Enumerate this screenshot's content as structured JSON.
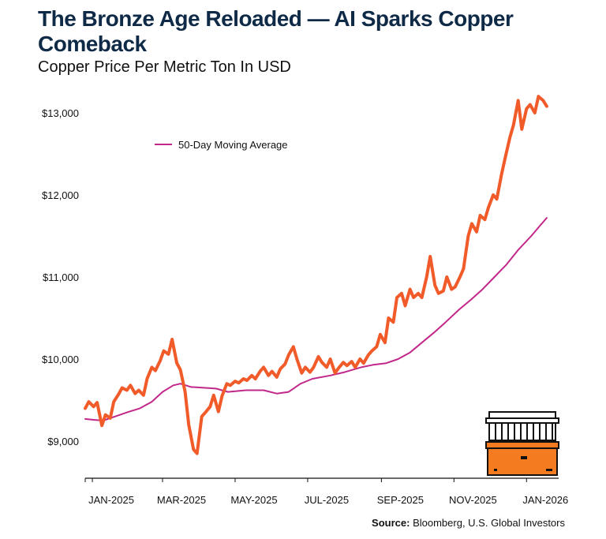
{
  "header": {
    "title": "The Bronze Age Reloaded — AI Sparks Copper Comeback",
    "subtitle": "Copper Price Per Metric Ton In USD"
  },
  "source": {
    "label": "Source:",
    "text": "Bloomberg, U.S. Global Investors"
  },
  "colors": {
    "price": "#f15a29",
    "moving_average": "#c2288a",
    "icon_fill": "#f47b20"
  },
  "icon": "bank-gold-bar-icon",
  "chart_data": {
    "type": "line",
    "title": "Copper Price Per Metric Ton In USD",
    "xlabel": "",
    "ylabel": "",
    "x_ticks": [
      "JAN-2025",
      "MAR-2025",
      "MAY-2025",
      "JUL-2025",
      "SEP-2025",
      "NOV-2025",
      "JAN-2026"
    ],
    "y_ticks": [
      {
        "value": 9000,
        "label": "$9,000"
      },
      {
        "value": 10000,
        "label": "$10,000"
      },
      {
        "value": 11000,
        "label": "$11,000"
      },
      {
        "value": 12000,
        "label": "$12,000"
      },
      {
        "value": 13000,
        "label": "$13,000"
      }
    ],
    "x_range": [
      "2024-12-26",
      "2026-01-28"
    ],
    "ylim": [
      8500,
      13500
    ],
    "legend": {
      "placement": "top-left",
      "entries": [
        "50-Day Moving Average"
      ]
    },
    "grid": false,
    "series": [
      {
        "name": "",
        "points": [
          [
            "2024-12-26",
            9400
          ],
          [
            "2024-12-29",
            9480
          ],
          [
            "2025-01-02",
            9420
          ],
          [
            "2025-01-05",
            9470
          ],
          [
            "2025-01-09",
            9190
          ],
          [
            "2025-01-12",
            9320
          ],
          [
            "2025-01-16",
            9280
          ],
          [
            "2025-01-19",
            9480
          ],
          [
            "2025-01-23",
            9570
          ],
          [
            "2025-01-26",
            9650
          ],
          [
            "2025-01-30",
            9620
          ],
          [
            "2025-02-02",
            9680
          ],
          [
            "2025-02-06",
            9580
          ],
          [
            "2025-02-09",
            9620
          ],
          [
            "2025-02-13",
            9560
          ],
          [
            "2025-02-16",
            9760
          ],
          [
            "2025-02-20",
            9900
          ],
          [
            "2025-02-23",
            9860
          ],
          [
            "2025-02-27",
            9980
          ],
          [
            "2025-03-02",
            10100
          ],
          [
            "2025-03-06",
            10060
          ],
          [
            "2025-03-09",
            10240
          ],
          [
            "2025-03-13",
            9950
          ],
          [
            "2025-03-16",
            9870
          ],
          [
            "2025-03-20",
            9600
          ],
          [
            "2025-03-23",
            9200
          ],
          [
            "2025-03-27",
            8900
          ],
          [
            "2025-03-30",
            8850
          ],
          [
            "2025-04-03",
            9300
          ],
          [
            "2025-04-06",
            9350
          ],
          [
            "2025-04-10",
            9420
          ],
          [
            "2025-04-13",
            9560
          ],
          [
            "2025-04-17",
            9360
          ],
          [
            "2025-04-20",
            9550
          ],
          [
            "2025-04-24",
            9700
          ],
          [
            "2025-04-27",
            9680
          ],
          [
            "2025-05-01",
            9730
          ],
          [
            "2025-05-04",
            9710
          ],
          [
            "2025-05-08",
            9760
          ],
          [
            "2025-05-11",
            9740
          ],
          [
            "2025-05-15",
            9800
          ],
          [
            "2025-05-18",
            9760
          ],
          [
            "2025-05-22",
            9850
          ],
          [
            "2025-05-25",
            9900
          ],
          [
            "2025-05-29",
            9800
          ],
          [
            "2025-06-01",
            9850
          ],
          [
            "2025-06-05",
            9780
          ],
          [
            "2025-06-08",
            9880
          ],
          [
            "2025-06-12",
            9940
          ],
          [
            "2025-06-15",
            10050
          ],
          [
            "2025-06-19",
            10150
          ],
          [
            "2025-06-22",
            10000
          ],
          [
            "2025-06-26",
            9830
          ],
          [
            "2025-06-29",
            9900
          ],
          [
            "2025-07-03",
            9840
          ],
          [
            "2025-07-06",
            9900
          ],
          [
            "2025-07-10",
            10030
          ],
          [
            "2025-07-13",
            9960
          ],
          [
            "2025-07-17",
            9900
          ],
          [
            "2025-07-20",
            10000
          ],
          [
            "2025-07-24",
            9830
          ],
          [
            "2025-07-27",
            9890
          ],
          [
            "2025-07-31",
            9960
          ],
          [
            "2025-08-03",
            9920
          ],
          [
            "2025-08-07",
            9970
          ],
          [
            "2025-08-10",
            9900
          ],
          [
            "2025-08-14",
            10000
          ],
          [
            "2025-08-17",
            9950
          ],
          [
            "2025-08-21",
            10050
          ],
          [
            "2025-08-24",
            10100
          ],
          [
            "2025-08-28",
            10150
          ],
          [
            "2025-08-31",
            10300
          ],
          [
            "2025-09-04",
            10200
          ],
          [
            "2025-09-07",
            10500
          ],
          [
            "2025-09-11",
            10450
          ],
          [
            "2025-09-14",
            10750
          ],
          [
            "2025-09-18",
            10800
          ],
          [
            "2025-09-21",
            10650
          ],
          [
            "2025-09-25",
            10850
          ],
          [
            "2025-09-28",
            10750
          ],
          [
            "2025-10-02",
            10800
          ],
          [
            "2025-10-05",
            10750
          ],
          [
            "2025-10-09",
            11000
          ],
          [
            "2025-10-12",
            11250
          ],
          [
            "2025-10-16",
            10900
          ],
          [
            "2025-10-19",
            10800
          ],
          [
            "2025-10-23",
            10830
          ],
          [
            "2025-10-26",
            11000
          ],
          [
            "2025-10-30",
            10850
          ],
          [
            "2025-11-02",
            10880
          ],
          [
            "2025-11-06",
            11000
          ],
          [
            "2025-11-09",
            11100
          ],
          [
            "2025-11-13",
            11500
          ],
          [
            "2025-11-16",
            11650
          ],
          [
            "2025-11-20",
            11550
          ],
          [
            "2025-11-23",
            11750
          ],
          [
            "2025-11-27",
            11700
          ],
          [
            "2025-11-30",
            11850
          ],
          [
            "2025-12-04",
            12000
          ],
          [
            "2025-12-07",
            11950
          ],
          [
            "2025-12-11",
            12250
          ],
          [
            "2025-12-14",
            12450
          ],
          [
            "2025-12-18",
            12700
          ],
          [
            "2025-12-21",
            12850
          ],
          [
            "2025-12-25",
            13150
          ],
          [
            "2025-12-28",
            12800
          ],
          [
            "2026-01-01",
            13050
          ],
          [
            "2026-01-04",
            13100
          ],
          [
            "2026-01-08",
            13000
          ],
          [
            "2026-01-11",
            13200
          ],
          [
            "2026-01-15",
            13150
          ],
          [
            "2026-01-18",
            13080
          ]
        ]
      },
      {
        "name": "50-Day Moving Average",
        "points": [
          [
            "2024-12-26",
            9270
          ],
          [
            "2025-01-02",
            9260
          ],
          [
            "2025-01-10",
            9250
          ],
          [
            "2025-01-20",
            9300
          ],
          [
            "2025-01-30",
            9350
          ],
          [
            "2025-02-10",
            9400
          ],
          [
            "2025-02-20",
            9480
          ],
          [
            "2025-03-01",
            9600
          ],
          [
            "2025-03-10",
            9680
          ],
          [
            "2025-03-16",
            9700
          ],
          [
            "2025-03-25",
            9660
          ],
          [
            "2025-04-05",
            9650
          ],
          [
            "2025-04-15",
            9640
          ],
          [
            "2025-04-25",
            9600
          ],
          [
            "2025-05-10",
            9620
          ],
          [
            "2025-05-25",
            9620
          ],
          [
            "2025-06-05",
            9580
          ],
          [
            "2025-06-15",
            9600
          ],
          [
            "2025-06-25",
            9700
          ],
          [
            "2025-07-05",
            9760
          ],
          [
            "2025-07-20",
            9800
          ],
          [
            "2025-08-01",
            9840
          ],
          [
            "2025-08-15",
            9900
          ],
          [
            "2025-08-25",
            9930
          ],
          [
            "2025-09-05",
            9950
          ],
          [
            "2025-09-15",
            10000
          ],
          [
            "2025-09-25",
            10080
          ],
          [
            "2025-10-05",
            10200
          ],
          [
            "2025-10-15",
            10320
          ],
          [
            "2025-10-25",
            10450
          ],
          [
            "2025-11-05",
            10600
          ],
          [
            "2025-11-15",
            10720
          ],
          [
            "2025-11-25",
            10850
          ],
          [
            "2025-12-05",
            11000
          ],
          [
            "2025-12-15",
            11150
          ],
          [
            "2025-12-25",
            11330
          ],
          [
            "2026-01-05",
            11500
          ],
          [
            "2026-01-12",
            11620
          ],
          [
            "2026-01-18",
            11720
          ]
        ]
      }
    ]
  }
}
